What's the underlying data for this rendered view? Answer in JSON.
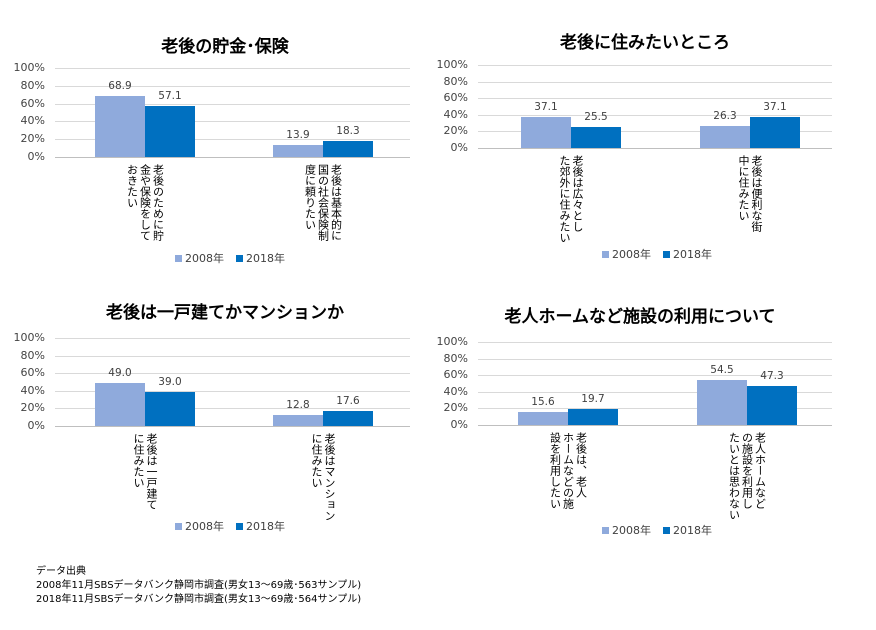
{
  "chart_data": [
    {
      "type": "bar",
      "title": "老後の貯金･保険",
      "categories": [
        [
          "老後のために貯",
          "金や保険をして",
          "おきたい"
        ],
        [
          "老後は基本的に",
          "国の社会保険制",
          "度に頼りたい"
        ]
      ],
      "series": [
        {
          "name": "2008年",
          "values": [
            68.9,
            13.9
          ],
          "color": "#8faadc"
        },
        {
          "name": "2018年",
          "values": [
            57.1,
            18.3
          ],
          "color": "#0070c0"
        }
      ],
      "yticks": [
        "100%",
        "80%",
        "60%",
        "40%",
        "20%",
        "0%"
      ],
      "ylim": [
        0,
        100
      ],
      "grid": true,
      "legend": "bottom"
    },
    {
      "type": "bar",
      "title": "老後に住みたいところ",
      "categories": [
        [
          "老後は広々とし",
          "た郊外に住みたい"
        ],
        [
          "老後は便利な街",
          "中に住みたい"
        ]
      ],
      "series": [
        {
          "name": "2008年",
          "values": [
            37.1,
            26.3
          ],
          "color": "#8faadc"
        },
        {
          "name": "2018年",
          "values": [
            25.5,
            37.1
          ],
          "color": "#0070c0"
        }
      ],
      "yticks": [
        "100%",
        "80%",
        "60%",
        "40%",
        "20%",
        "0%"
      ],
      "ylim": [
        0,
        100
      ],
      "grid": true,
      "legend": "bottom"
    },
    {
      "type": "bar",
      "title": "老後は一戸建てかマンションか",
      "categories": [
        [
          "老後は一戸建て",
          "に住みたい"
        ],
        [
          "老後はマンション",
          "に住みたい"
        ]
      ],
      "series": [
        {
          "name": "2008年",
          "values": [
            49.0,
            12.8
          ],
          "color": "#8faadc"
        },
        {
          "name": "2018年",
          "values": [
            39.0,
            17.6
          ],
          "color": "#0070c0"
        }
      ],
      "yticks": [
        "100%",
        "80%",
        "60%",
        "40%",
        "20%",
        "0%"
      ],
      "ylim": [
        0,
        100
      ],
      "grid": true,
      "legend": "bottom"
    },
    {
      "type": "bar",
      "title": "老人ホームなど施設の利用について",
      "categories": [
        [
          "老後は、老人",
          "ホームなどの施",
          "設を利用したい"
        ],
        [
          "老人ホームなど",
          "の施設を利用し",
          "たいとは思わない"
        ]
      ],
      "series": [
        {
          "name": "2008年",
          "values": [
            15.6,
            54.5
          ],
          "color": "#8faadc"
        },
        {
          "name": "2018年",
          "values": [
            19.7,
            47.3
          ],
          "color": "#0070c0"
        }
      ],
      "yticks": [
        "100%",
        "80%",
        "60%",
        "40%",
        "20%",
        "0%"
      ],
      "ylim": [
        0,
        100
      ],
      "grid": true,
      "legend": "bottom"
    }
  ],
  "source": {
    "heading": "データ出典",
    "lines": [
      "2008年11月SBSデータバンク静岡市調査(男女13～69歳･563サンプル)",
      "2018年11月SBSデータバンク静岡市調査(男女13～69歳･564サンプル)"
    ]
  }
}
